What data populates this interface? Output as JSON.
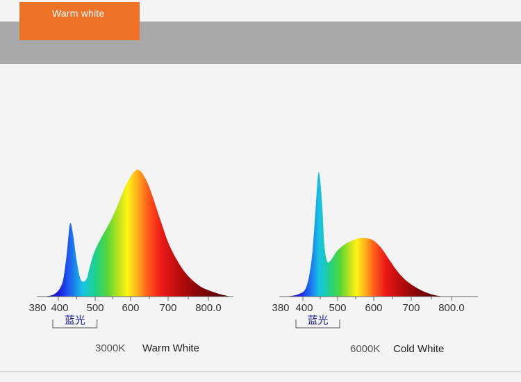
{
  "header": {
    "badge_label": "Warm white",
    "badge_color": "#ee7326",
    "band_color": "#a9a9a9"
  },
  "chart_data": [
    {
      "type": "area",
      "title": "",
      "caption_temp": "3000K",
      "caption_name": "Warm White",
      "bracket_label": "蓝光",
      "bracket_range": [
        380,
        490
      ],
      "x_tick_labels": [
        "380",
        "400",
        "500",
        "600",
        "700",
        "800.0"
      ],
      "x_ticks": [
        380,
        400,
        500,
        600,
        700,
        800
      ],
      "xlim": [
        370,
        845
      ],
      "ylim": [
        0,
        1
      ],
      "grid": false,
      "series": [
        {
          "x": [
            380,
            395,
            410,
            420,
            425,
            432,
            440,
            450,
            460,
            470,
            478,
            485,
            495,
            505,
            520,
            540,
            560,
            580,
            600,
            615,
            622,
            630,
            645,
            660,
            680,
            700,
            720,
            740,
            760,
            780,
            800,
            820,
            840
          ],
          "y": [
            0.0,
            0.02,
            0.1,
            0.27,
            0.4,
            0.58,
            0.49,
            0.28,
            0.14,
            0.12,
            0.15,
            0.23,
            0.33,
            0.4,
            0.48,
            0.58,
            0.7,
            0.84,
            0.95,
            1.0,
            1.0,
            0.98,
            0.9,
            0.78,
            0.6,
            0.43,
            0.3,
            0.2,
            0.13,
            0.08,
            0.05,
            0.02,
            0.0
          ]
        }
      ]
    },
    {
      "type": "area",
      "title": "",
      "caption_temp": "6000K",
      "caption_name": "Cold White",
      "bracket_label": "蓝光",
      "bracket_range": [
        380,
        490
      ],
      "x_tick_labels": [
        "380",
        "400",
        "500",
        "600",
        "700",
        "800.0"
      ],
      "x_ticks": [
        380,
        400,
        500,
        600,
        700,
        800
      ],
      "xlim": [
        370,
        845
      ],
      "ylim": [
        0,
        1
      ],
      "grid": false,
      "series": [
        {
          "x": [
            380,
            395,
            410,
            425,
            435,
            443,
            448,
            455,
            462,
            470,
            478,
            490,
            500,
            520,
            540,
            560,
            580,
            600,
            620,
            640,
            660,
            680,
            700,
            720,
            740,
            760,
            780
          ],
          "y": [
            0.0,
            0.02,
            0.08,
            0.3,
            0.65,
            0.98,
            1.0,
            0.78,
            0.42,
            0.29,
            0.29,
            0.34,
            0.38,
            0.43,
            0.46,
            0.48,
            0.48,
            0.46,
            0.4,
            0.31,
            0.22,
            0.15,
            0.1,
            0.06,
            0.03,
            0.01,
            0.0
          ]
        }
      ]
    }
  ]
}
